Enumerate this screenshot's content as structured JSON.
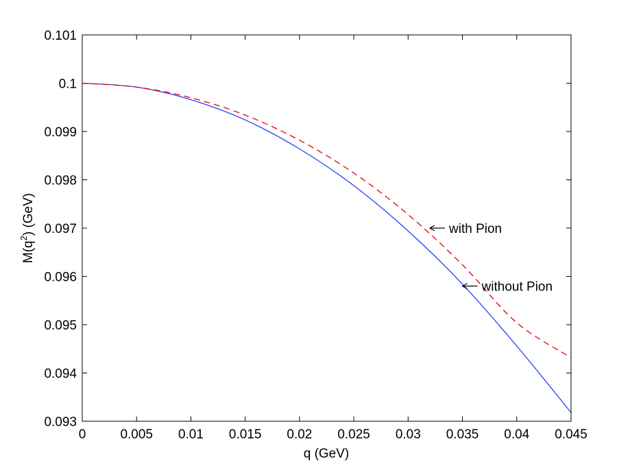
{
  "chart_data": {
    "type": "line",
    "title": "",
    "xlabel": "q (GeV)",
    "ylabel_main": "M(q",
    "ylabel_sup": "2",
    "ylabel_tail": ") (GeV)",
    "xlim": [
      0,
      0.045
    ],
    "ylim": [
      0.093,
      0.101
    ],
    "xticks": [
      0,
      0.005,
      0.01,
      0.015,
      0.02,
      0.025,
      0.03,
      0.035,
      0.04,
      0.045
    ],
    "xtick_labels": [
      "0",
      "0.005",
      "0.01",
      "0.015",
      "0.02",
      "0.025",
      "0.03",
      "0.035",
      "0.04",
      "0.045"
    ],
    "yticks": [
      0.093,
      0.094,
      0.095,
      0.096,
      0.097,
      0.098,
      0.099,
      0.1,
      0.101
    ],
    "ytick_labels": [
      "0.093",
      "0.094",
      "0.095",
      "0.096",
      "0.097",
      "0.098",
      "0.099",
      "0.1",
      "0.101"
    ],
    "grid": false,
    "series": [
      {
        "style": "solid",
        "color": "#1f3fff",
        "x": [
          0,
          0.005,
          0.01,
          0.015,
          0.02,
          0.025,
          0.03,
          0.035,
          0.04,
          0.045
        ],
        "y": [
          0.1,
          0.09992,
          0.09966,
          0.09924,
          0.09864,
          0.09788,
          0.09694,
          0.09584,
          0.09456,
          0.09318
        ]
      },
      {
        "style": "dashed",
        "color": "#e00000",
        "x": [
          0,
          0.005,
          0.01,
          0.015,
          0.02,
          0.025,
          0.03,
          0.035,
          0.04,
          0.045
        ],
        "y": [
          0.1,
          0.09992,
          0.0997,
          0.09934,
          0.09882,
          0.09814,
          0.09728,
          0.09624,
          0.09504,
          0.09432
        ]
      }
    ],
    "annotations": [
      {
        "text": "with Pion",
        "x": 0.032,
        "y": 0.097
      },
      {
        "text": "without Pion",
        "x": 0.035,
        "y": 0.0958
      }
    ]
  }
}
